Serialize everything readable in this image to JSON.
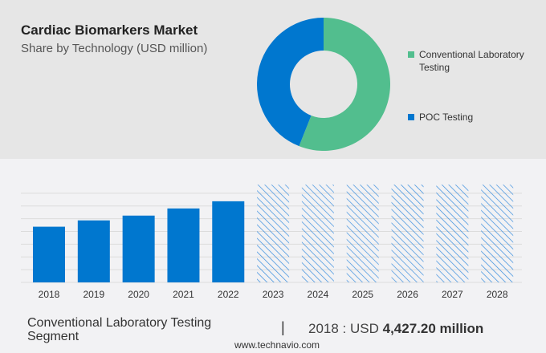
{
  "header": {
    "title": "Cardiac Biomarkers Market",
    "subtitle": "Share by Technology (USD million)"
  },
  "chart_data": [
    {
      "type": "pie",
      "donut": true,
      "series": [
        {
          "name": "Conventional Laboratory Testing",
          "value": 56,
          "color": "#52be8e"
        },
        {
          "name": "POC Testing",
          "value": 44,
          "color": "#0077cf"
        }
      ],
      "legend": "right"
    },
    {
      "type": "bar",
      "categories": [
        "2018",
        "2019",
        "2020",
        "2021",
        "2022",
        "2023",
        "2024",
        "2025",
        "2026",
        "2027",
        "2028"
      ],
      "values": [
        4427.2,
        4930,
        5310,
        5880,
        6450,
        7770,
        7770,
        7770,
        7770,
        7770,
        7770
      ],
      "forecast": [
        false,
        false,
        false,
        false,
        false,
        true,
        true,
        true,
        true,
        true,
        true
      ],
      "color": "#0077cf",
      "grid": true,
      "ylim": [
        0,
        8100
      ]
    }
  ],
  "footer": {
    "segment": "Conventional Laboratory Testing Segment",
    "separator": "|",
    "year_label": "2018 : USD ",
    "value": "4,427.20 million",
    "source": "www.technavio.com"
  }
}
